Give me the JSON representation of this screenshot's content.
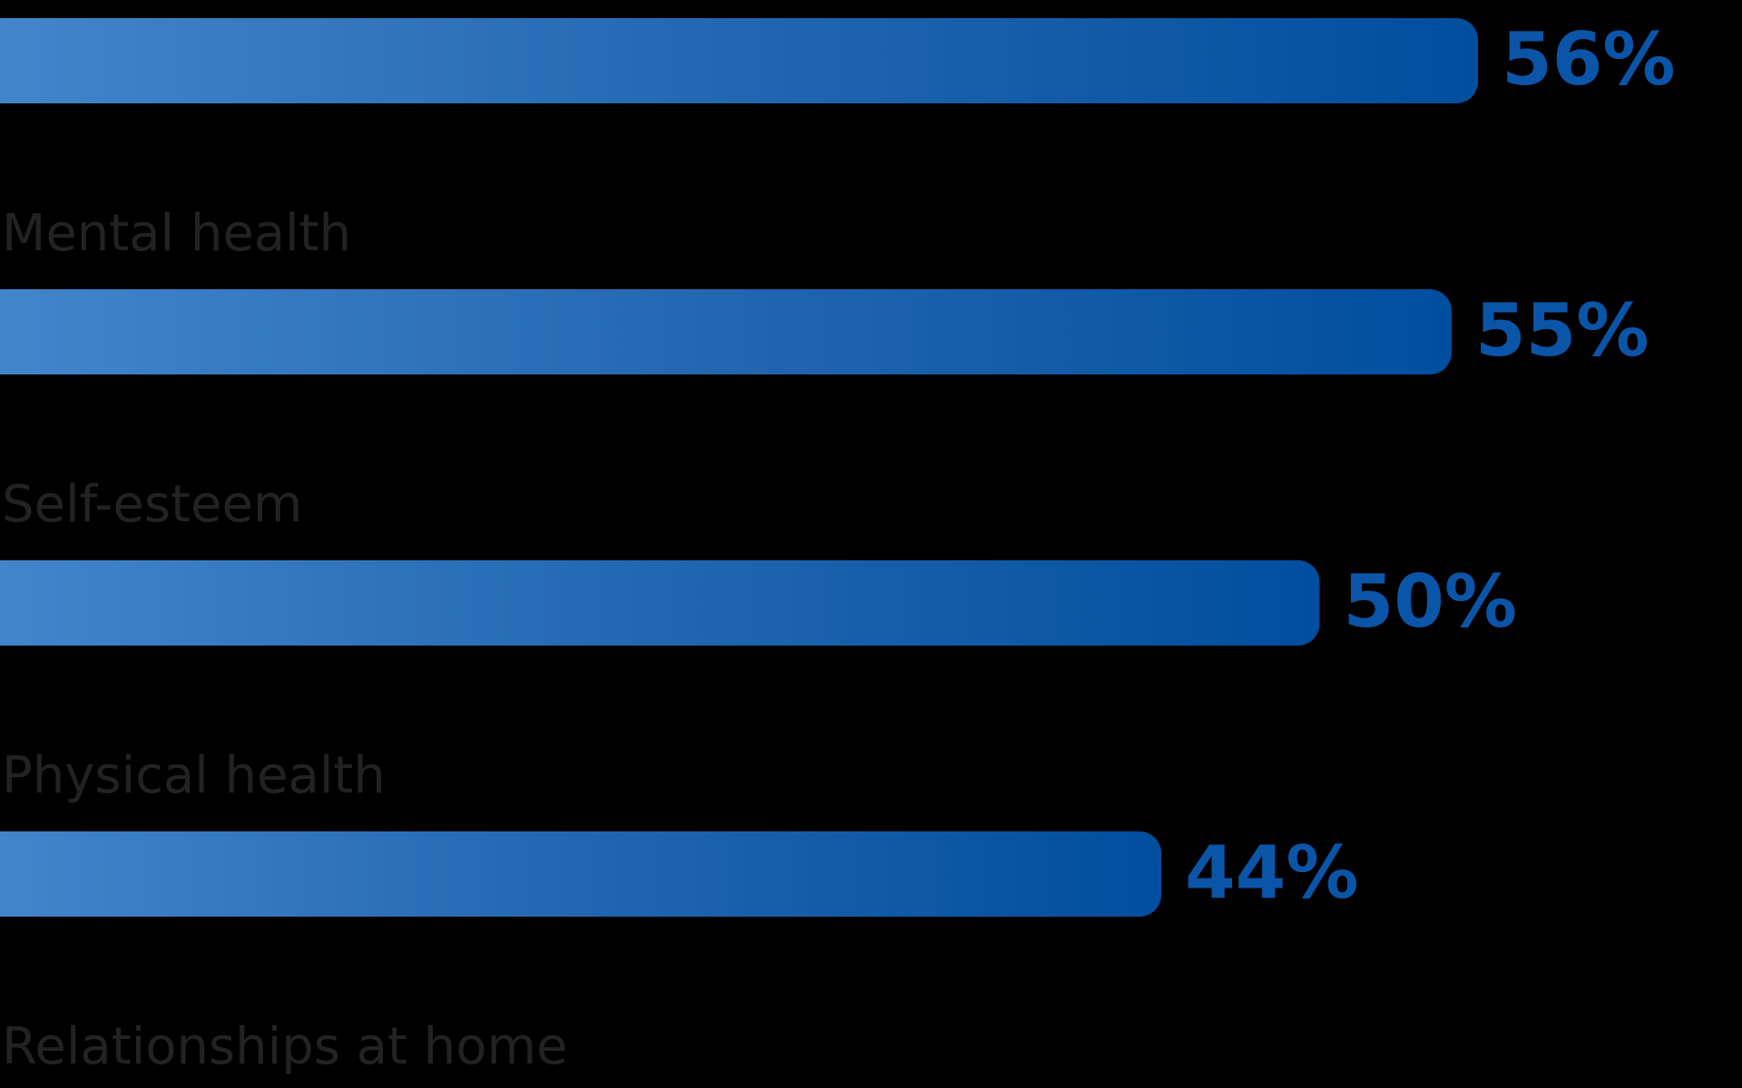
{
  "chart_data": {
    "type": "hbar",
    "categories": [
      null,
      "Mental health",
      "Self-esteem",
      "Physical health",
      "Relationships at home"
    ],
    "values": [
      56,
      55,
      50,
      44,
      null
    ],
    "value_labels": [
      "56%",
      "55%",
      "50%",
      "44%",
      null
    ],
    "xlim": [
      0,
      66
    ],
    "color": "#0a55a8"
  }
}
